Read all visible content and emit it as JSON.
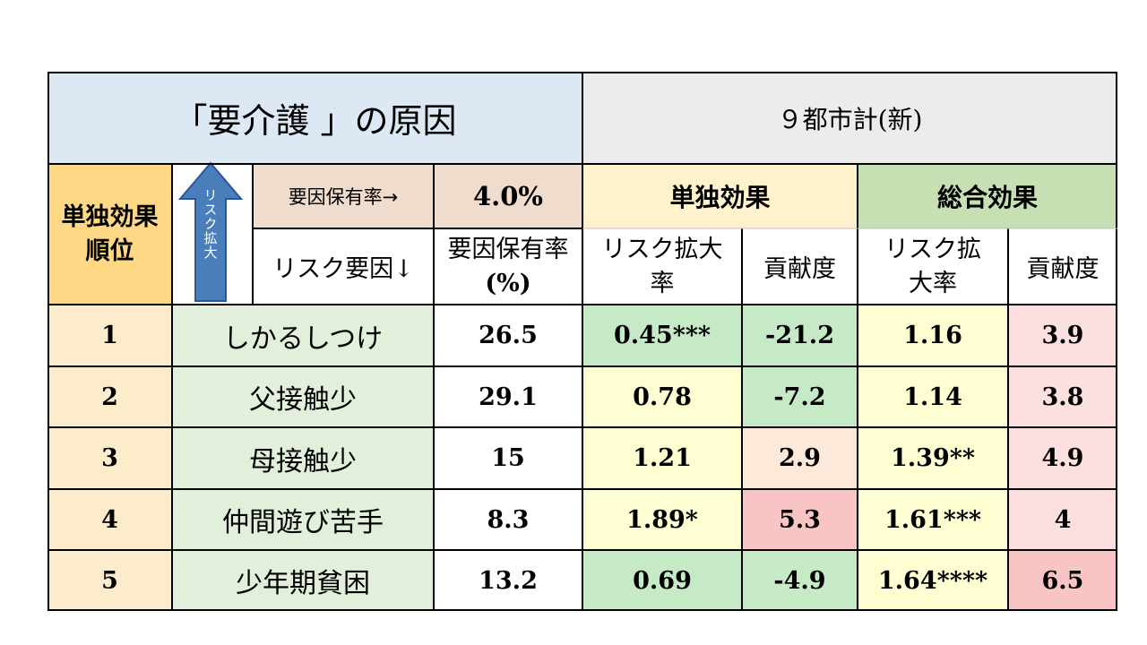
{
  "header": {
    "title": "「要介護 」の原因",
    "region": "９都市計(新)"
  },
  "subheader": {
    "rank_label_line1": "単独効果",
    "rank_label_line2": "順位",
    "arrow_label": "リスク拡大",
    "factor_rate_arrow_label": "要因保有率→",
    "factor_rate_value": "4.0%",
    "single_effect": "単独効果",
    "total_effect": "総合効果",
    "risk_factor_label": "リスク要因↓",
    "rate_col_line1": "要因保有率",
    "rate_col_line2": "(%)",
    "single_ratio_line1": "リスク拡大",
    "single_ratio_line2": "率",
    "single_contrib": "貢献度",
    "total_ratio_line1": "リスク拡",
    "total_ratio_line2": "大率",
    "total_contrib": "貢献度"
  },
  "rows": [
    {
      "rank": "1",
      "factor": "しかるしつけ",
      "rate": "26.5",
      "single_ratio": "0.45***",
      "single_contrib": "-21.2",
      "total_ratio": "1.16",
      "total_contrib": "3.9"
    },
    {
      "rank": "2",
      "factor": "父接触少",
      "rate": "29.1",
      "single_ratio": "0.78",
      "single_contrib": "-7.2",
      "total_ratio": "1.14",
      "total_contrib": "3.8"
    },
    {
      "rank": "3",
      "factor": "母接触少",
      "rate": "15",
      "single_ratio": "1.21",
      "single_contrib": "2.9",
      "total_ratio": "1.39**",
      "total_contrib": "4.9"
    },
    {
      "rank": "4",
      "factor": "仲間遊び苦手",
      "rate": "8.3",
      "single_ratio": "1.89*",
      "single_contrib": "5.3",
      "total_ratio": "1.61***",
      "total_contrib": "4"
    },
    {
      "rank": "5",
      "factor": "少年期貧困",
      "rate": "13.2",
      "single_ratio": "0.69",
      "single_contrib": "-4.9",
      "total_ratio": "1.64****",
      "total_contrib": "6.5"
    }
  ],
  "colors": {
    "title_bg": "#dce9f5",
    "region_bg": "#ececec",
    "rank_header_bg": "#ffd885",
    "arrow_blue": "#4a7ebb",
    "factor_rate_bg": "#f0dccc",
    "single_header_bg": "#fff2cc",
    "total_header_bg": "#c6e0b4",
    "rank_cell_bg": "#fdeccc",
    "factor_cell_bg": "#e2efda",
    "green": "#c6e9c6",
    "light_yellow": "#fefed2",
    "light_peach": "#fde9d9",
    "pink": "#f9c4c4",
    "light_pink": "#fcdfdf"
  }
}
